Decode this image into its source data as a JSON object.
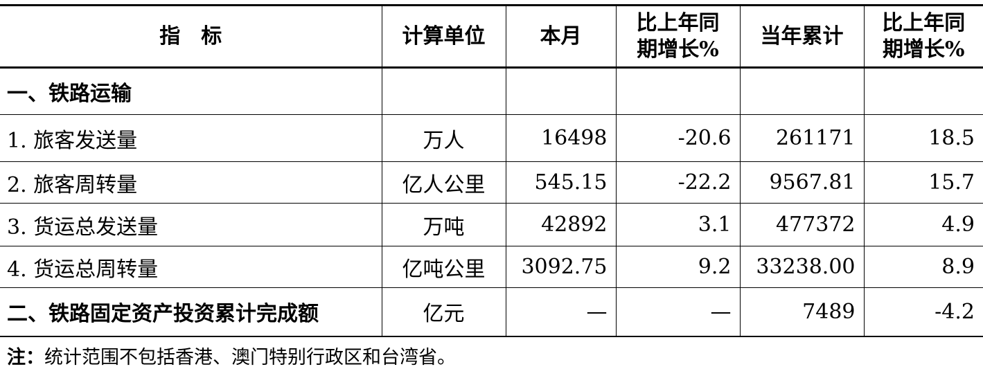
{
  "headers": [
    "指　标",
    "计算单位",
    "本月",
    "比上年同期增长%",
    "当年累计",
    "比上年同期增长%"
  ],
  "header_lines": {
    "c3a": "比上年同",
    "c3b": "期增长%",
    "c5a": "比上年同",
    "c5b": "期增长%"
  },
  "rows": [
    {
      "label": "一、铁路运输",
      "unit": "",
      "month": "",
      "month_yoy": "",
      "ytd": "",
      "ytd_yoy": "",
      "section": true
    },
    {
      "label": "1. 旅客发送量",
      "unit": "万人",
      "month": "16498",
      "month_yoy": "-20.6",
      "ytd": "261171",
      "ytd_yoy": "18.5"
    },
    {
      "label": "2. 旅客周转量",
      "unit": "亿人公里",
      "month": "545.15",
      "month_yoy": "-22.2",
      "ytd": "9567.81",
      "ytd_yoy": "15.7"
    },
    {
      "label": "3. 货运总发送量",
      "unit": "万吨",
      "month": "42892",
      "month_yoy": "3.1",
      "ytd": "477372",
      "ytd_yoy": "4.9"
    },
    {
      "label": "4. 货运总周转量",
      "unit": "亿吨公里",
      "month": "3092.75",
      "month_yoy": "9.2",
      "ytd": "33238.00",
      "ytd_yoy": "8.9"
    },
    {
      "label": "二、铁路固定资产投资累计完成额",
      "unit": "亿元",
      "month": "—",
      "month_yoy": "—",
      "ytd": "7489",
      "ytd_yoy": "-4.2",
      "section": true
    }
  ],
  "note": {
    "prefix": "注：",
    "text": "统计范围不包括香港、澳门特别行政区和台湾省。"
  }
}
